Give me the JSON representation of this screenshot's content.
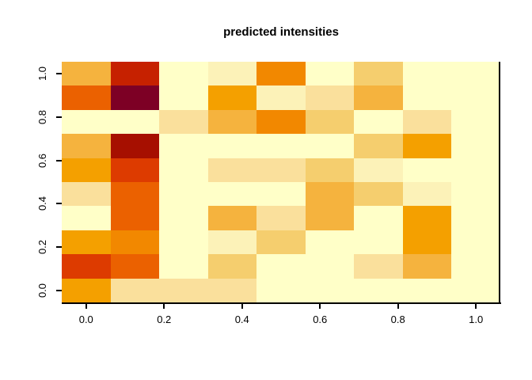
{
  "chart_data": {
    "type": "heatmap",
    "title": "predicted intensities",
    "n_cols": 9,
    "n_rows": 10,
    "x_tick_values": [
      0,
      0.2,
      0.4,
      0.6,
      0.8,
      1
    ],
    "x_tick_labels": [
      "0.0",
      "0.2",
      "0.4",
      "0.6",
      "0.8",
      "1.0"
    ],
    "y_tick_values": [
      0,
      0.2,
      0.4,
      0.6,
      0.8,
      1
    ],
    "y_tick_labels": [
      "0.0",
      "0.2",
      "0.4",
      "0.6",
      "0.8",
      "1.0"
    ],
    "col_x_centers": [
      0,
      0.125,
      0.25,
      0.375,
      0.5,
      0.625,
      0.75,
      0.875,
      1.0
    ],
    "row_y_centers_top_to_bottom": [
      1.0,
      0.889,
      0.778,
      0.667,
      0.556,
      0.444,
      0.333,
      0.222,
      0.111,
      0.0
    ],
    "palette_light_to_dark": [
      "#FFFFC8",
      "#FCF2B8",
      "#FAE09C",
      "#F5CE6E",
      "#F5B33E",
      "#F4A000",
      "#F28800",
      "#EB6100",
      "#DD3B00",
      "#C62100",
      "#A60F00",
      "#7D0025"
    ],
    "cells_top_to_bottom": [
      [
        "#F5B33E",
        "#C62100",
        "#FFFFC8",
        "#FCF2B8",
        "#F28800",
        "#FFFFC8",
        "#F5CE6E",
        "#FFFFC8",
        "#FFFFC8"
      ],
      [
        "#EB6100",
        "#7D0025",
        "#FFFFC8",
        "#F4A000",
        "#FCF2B8",
        "#FAE09C",
        "#F5B33E",
        "#FFFFC8",
        "#FFFFC8"
      ],
      [
        "#FFFFC8",
        "#FFFFC8",
        "#FAE09C",
        "#F5B33E",
        "#F28800",
        "#F5CE6E",
        "#FFFFC8",
        "#FAE09C",
        "#FFFFC8"
      ],
      [
        "#F5B33E",
        "#A60F00",
        "#FFFFC8",
        "#FFFFC8",
        "#FFFFC8",
        "#FFFFC8",
        "#F5CE6E",
        "#F4A000",
        "#FFFFC8"
      ],
      [
        "#F4A000",
        "#DD3B00",
        "#FFFFC8",
        "#FAE09C",
        "#FAE09C",
        "#F5CE6E",
        "#FCF2B8",
        "#FFFFC8",
        "#FFFFC8"
      ],
      [
        "#FAE09C",
        "#EB6100",
        "#FFFFC8",
        "#FFFFC8",
        "#FFFFC8",
        "#F5B33E",
        "#F5CE6E",
        "#FCF2B8",
        "#FFFFC8"
      ],
      [
        "#FFFFC8",
        "#EB6100",
        "#FFFFC8",
        "#F5B33E",
        "#FAE09C",
        "#F5B33E",
        "#FFFFC8",
        "#F4A000",
        "#FFFFC8"
      ],
      [
        "#F4A000",
        "#F28800",
        "#FFFFC8",
        "#FCF2B8",
        "#F5CE6E",
        "#FFFFC8",
        "#FFFFC8",
        "#F4A000",
        "#FFFFC8"
      ],
      [
        "#DD3B00",
        "#EB6100",
        "#FFFFC8",
        "#F5CE6E",
        "#FFFFC8",
        "#FFFFC8",
        "#FAE09C",
        "#F5B33E",
        "#FFFFC8"
      ],
      [
        "#F4A000",
        "#FAE09C",
        "#FAE09C",
        "#FAE09C",
        "#FFFFC8",
        "#FFFFC8",
        "#FFFFC8",
        "#FFFFC8",
        "#FFFFC8"
      ]
    ],
    "legend": "none",
    "grid_lines": "off",
    "axis_style": "bottom line + right border line, outward ticks, rotated y labels"
  }
}
